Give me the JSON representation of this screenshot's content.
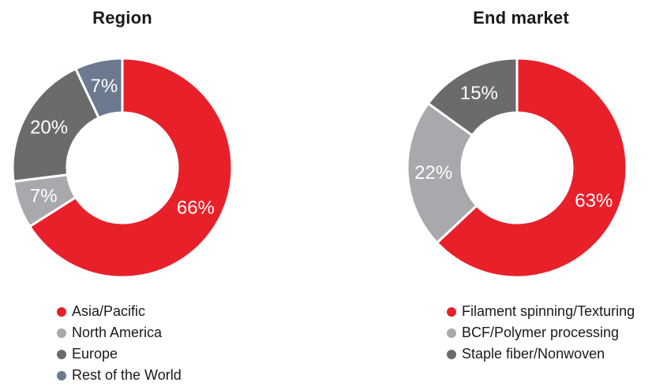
{
  "colors": {
    "red": "#e8202a",
    "light_gray": "#a7a9ac",
    "dark_gray": "#6a6b6d",
    "slate_blue": "#6b7a8f"
  },
  "chart_data": [
    {
      "type": "pie",
      "style": "donut",
      "title": "Region",
      "labels": [
        "Asia/Pacific",
        "North America",
        "Europe",
        "Rest of the World"
      ],
      "values": [
        66,
        7,
        20,
        7
      ],
      "value_labels": [
        "66%",
        "7%",
        "20%",
        "7%"
      ],
      "colors": [
        "#e8202a",
        "#a7a9ac",
        "#6a6b6d",
        "#6b7a8f"
      ],
      "legend": "bottom"
    },
    {
      "type": "pie",
      "style": "donut",
      "title": "End market",
      "labels": [
        "Filament spinning/Texturing",
        "BCF/Polymer processing",
        "Staple fiber/Nonwoven"
      ],
      "values": [
        63,
        22,
        15
      ],
      "value_labels": [
        "63%",
        "22%",
        "15%"
      ],
      "colors": [
        "#e8202a",
        "#a7a9ac",
        "#6a6b6d"
      ],
      "legend": "bottom"
    }
  ]
}
